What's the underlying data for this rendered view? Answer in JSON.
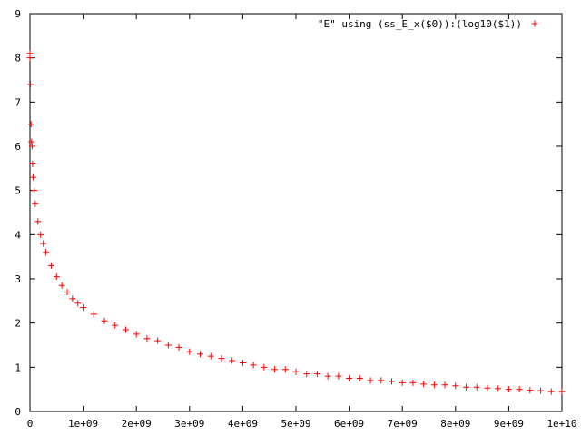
{
  "chart_data": {
    "type": "scatter",
    "title": "",
    "xlabel": "",
    "ylabel": "",
    "xlim": [
      0,
      10000000000
    ],
    "ylim": [
      0,
      9
    ],
    "grid": false,
    "legend_position": "top-right",
    "x_ticks": [
      {
        "value": 0,
        "label": "0"
      },
      {
        "value": 1000000000,
        "label": "1e+09"
      },
      {
        "value": 2000000000,
        "label": "2e+09"
      },
      {
        "value": 3000000000,
        "label": "3e+09"
      },
      {
        "value": 4000000000,
        "label": "4e+09"
      },
      {
        "value": 5000000000,
        "label": "5e+09"
      },
      {
        "value": 6000000000,
        "label": "6e+09"
      },
      {
        "value": 7000000000,
        "label": "7e+09"
      },
      {
        "value": 8000000000,
        "label": "8e+09"
      },
      {
        "value": 9000000000,
        "label": "9e+09"
      },
      {
        "value": 10000000000,
        "label": "1e+10"
      }
    ],
    "y_ticks": [
      {
        "value": 0,
        "label": "0"
      },
      {
        "value": 1,
        "label": "1"
      },
      {
        "value": 2,
        "label": "2"
      },
      {
        "value": 3,
        "label": "3"
      },
      {
        "value": 4,
        "label": "4"
      },
      {
        "value": 5,
        "label": "5"
      },
      {
        "value": 6,
        "label": "6"
      },
      {
        "value": 7,
        "label": "7"
      },
      {
        "value": 8,
        "label": "8"
      },
      {
        "value": 9,
        "label": "9"
      }
    ],
    "series": [
      {
        "name": "\"E\" using (ss_E_x($0)):(log10($1))",
        "color": "#ff0000",
        "marker": "plus",
        "x": [
          0,
          20000000,
          40000000,
          60000000,
          80000000,
          100000000,
          150000000,
          200000000,
          250000000,
          300000000,
          400000000,
          500000000,
          600000000,
          700000000,
          800000000,
          900000000,
          1000000000,
          1200000000,
          1400000000,
          1600000000,
          1800000000,
          2000000000,
          2200000000,
          2400000000,
          2600000000,
          2800000000,
          3000000000,
          3200000000,
          3400000000,
          3600000000,
          3800000000,
          4000000000,
          4200000000,
          4400000000,
          4600000000,
          4800000000,
          5000000000,
          5200000000,
          5400000000,
          5600000000,
          5800000000,
          6000000000,
          6200000000,
          6400000000,
          6600000000,
          6800000000,
          7000000000,
          7200000000,
          7400000000,
          7600000000,
          7800000000,
          8000000000,
          8200000000,
          8400000000,
          8600000000,
          8800000000,
          9000000000,
          9200000000,
          9400000000,
          9600000000,
          9800000000,
          10000000000,
          0,
          10000000,
          30000000,
          50000000
        ],
        "y": [
          8.1,
          6.5,
          6.0,
          5.3,
          5.0,
          4.7,
          4.3,
          4.0,
          3.8,
          3.6,
          3.3,
          3.05,
          2.85,
          2.7,
          2.55,
          2.45,
          2.35,
          2.2,
          2.05,
          1.95,
          1.85,
          1.75,
          1.65,
          1.6,
          1.5,
          1.45,
          1.35,
          1.3,
          1.25,
          1.2,
          1.15,
          1.1,
          1.05,
          1.0,
          0.95,
          0.95,
          0.9,
          0.85,
          0.85,
          0.8,
          0.8,
          0.75,
          0.75,
          0.7,
          0.7,
          0.68,
          0.65,
          0.65,
          0.62,
          0.6,
          0.6,
          0.58,
          0.55,
          0.55,
          0.53,
          0.52,
          0.5,
          0.5,
          0.48,
          0.47,
          0.45,
          0.45,
          8.0,
          7.4,
          6.1,
          5.6
        ]
      }
    ]
  }
}
